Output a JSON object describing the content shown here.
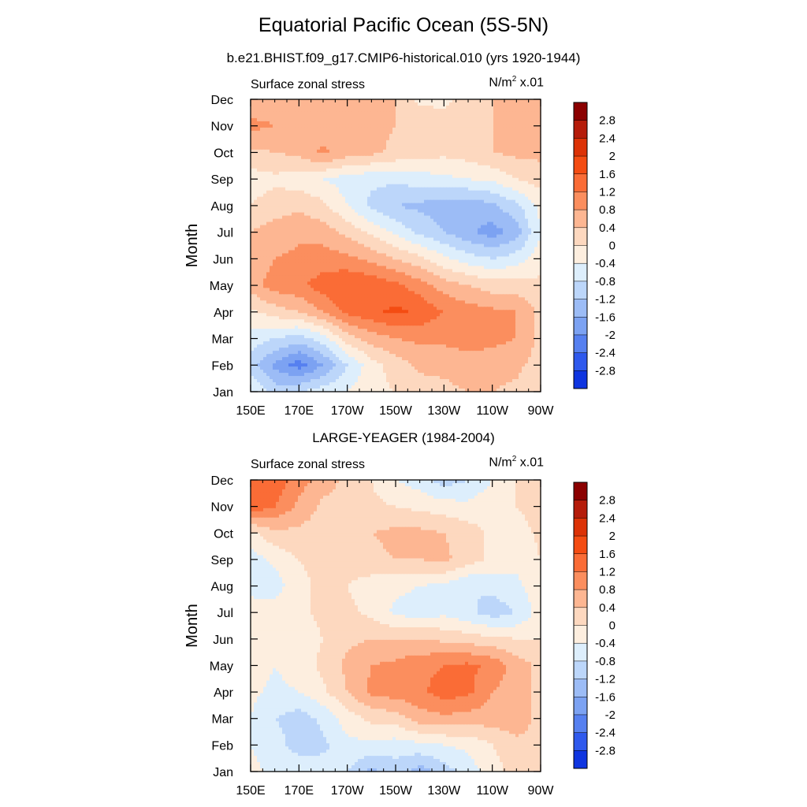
{
  "title": "Equatorial Pacific Ocean (5S-5N)",
  "chart_data": [
    {
      "type": "heatmap",
      "subtitle": "b.e21.BHIST.f09_g17.CMIP6-historical.010 (yrs 1920-1944)",
      "variable_label": "Surface zonal stress",
      "units": {
        "base": "N/m",
        "exp": "2",
        "scale": " x.01"
      },
      "xlabel": "",
      "ylabel": "Month",
      "x_ticks": [
        "150E",
        "170E",
        "170W",
        "150W",
        "130W",
        "110W",
        "90W"
      ],
      "y_ticks": [
        "Jan",
        "Feb",
        "Mar",
        "Apr",
        "May",
        "Jun",
        "Jul",
        "Aug",
        "Sep",
        "Oct",
        "Nov",
        "Dec"
      ],
      "x_range_lon": [
        150,
        270
      ],
      "y_range_month_index": [
        0,
        11
      ],
      "colorbar": {
        "levels": [
          "2.8",
          "2.4",
          "2",
          "1.6",
          "1.2",
          "0.8",
          "0.4",
          "0",
          "-0.4",
          "-0.8",
          "-1.2",
          "-1.6",
          "-2",
          "-2.4",
          "-2.8"
        ],
        "colors": [
          "#8b0000",
          "#b51c0a",
          "#dc3206",
          "#f44c12",
          "#fa6c36",
          "#fb8e5e",
          "#fdb692",
          "#fdd8bf",
          "#fdeedf",
          "#ddeefc",
          "#bcd6fa",
          "#9cbcf6",
          "#7ca2f2",
          "#5680f0",
          "#2f59ed",
          "#0f35e0",
          "#0820b4",
          "#000080"
        ]
      },
      "field": {
        "lons": [
          150,
          160,
          170,
          180,
          190,
          200,
          210,
          220,
          230,
          240,
          250,
          260,
          270
        ],
        "rows": [
          [
            -0.4,
            -1.0,
            -0.8,
            -0.6,
            -0.4,
            -0.1,
            0.0,
            0.2,
            0.3,
            0.4,
            0.4,
            0.3,
            0.1
          ],
          [
            -1.0,
            -1.7,
            -2.2,
            -1.6,
            -0.8,
            -0.2,
            0.2,
            0.5,
            0.5,
            0.6,
            0.6,
            0.5,
            0.2
          ],
          [
            -0.6,
            -0.8,
            -1.0,
            -0.6,
            0.2,
            0.6,
            0.8,
            0.9,
            0.9,
            1.0,
            0.9,
            0.8,
            0.3
          ],
          [
            -0.1,
            0.2,
            0.4,
            0.8,
            1.3,
            1.5,
            1.7,
            1.5,
            1.2,
            1.0,
            0.9,
            0.8,
            0.3
          ],
          [
            0.6,
            1.0,
            1.1,
            1.4,
            1.6,
            1.5,
            1.3,
            1.0,
            0.6,
            0.4,
            0.2,
            0.2,
            0.1
          ],
          [
            0.5,
            0.8,
            0.9,
            1.0,
            0.9,
            0.7,
            0.4,
            0.1,
            -0.3,
            -0.6,
            -0.8,
            -0.6,
            -0.2
          ],
          [
            0.4,
            0.6,
            0.7,
            0.6,
            0.3,
            -0.1,
            -0.5,
            -0.9,
            -1.2,
            -1.5,
            -1.8,
            -1.4,
            -0.4
          ],
          [
            0.0,
            0.2,
            0.3,
            0.1,
            -0.4,
            -0.9,
            -1.2,
            -1.3,
            -1.4,
            -1.5,
            -1.3,
            -0.9,
            -0.3
          ],
          [
            -0.2,
            -0.1,
            -0.2,
            -0.4,
            -0.6,
            -0.7,
            -0.7,
            -0.6,
            -0.5,
            -0.4,
            -0.3,
            0.0,
            0.2
          ],
          [
            0.3,
            0.4,
            0.5,
            0.9,
            0.6,
            0.5,
            0.3,
            0.2,
            0.1,
            0.2,
            0.4,
            0.5,
            0.5
          ],
          [
            0.9,
            0.8,
            0.7,
            0.6,
            0.5,
            0.5,
            0.4,
            0.3,
            0.2,
            0.3,
            0.4,
            0.5,
            0.5
          ],
          [
            0.5,
            0.7,
            0.7,
            0.6,
            0.5,
            0.5,
            0.4,
            -0.1,
            -0.1,
            0.2,
            0.4,
            0.4,
            0.4
          ]
        ]
      }
    },
    {
      "type": "heatmap",
      "subtitle": "LARGE-YEAGER (1984-2004)",
      "variable_label": "Surface zonal stress",
      "units": {
        "base": "N/m",
        "exp": "2",
        "scale": " x.01"
      },
      "xlabel": "",
      "ylabel": "Month",
      "x_ticks": [
        "150E",
        "170E",
        "170W",
        "150W",
        "130W",
        "110W",
        "90W"
      ],
      "y_ticks": [
        "Jan",
        "Feb",
        "Mar",
        "Apr",
        "May",
        "Jun",
        "Jul",
        "Aug",
        "Sep",
        "Oct",
        "Nov",
        "Dec"
      ],
      "x_range_lon": [
        150,
        270
      ],
      "y_range_month_index": [
        0,
        11
      ],
      "colorbar": {
        "levels": [
          "2.8",
          "2.4",
          "2",
          "1.6",
          "1.2",
          "0.8",
          "0.4",
          "0",
          "-0.4",
          "-0.8",
          "-1.2",
          "-1.6",
          "-2",
          "-2.4",
          "-2.8"
        ],
        "colors": [
          "#8b0000",
          "#b51c0a",
          "#dc3206",
          "#f44c12",
          "#fa6c36",
          "#fb8e5e",
          "#fdb692",
          "#fdd8bf",
          "#fdeedf",
          "#ddeefc",
          "#bcd6fa",
          "#9cbcf6",
          "#7ca2f2",
          "#5680f0",
          "#2f59ed",
          "#0f35e0",
          "#0820b4",
          "#000080"
        ]
      },
      "field": {
        "lons": [
          150,
          160,
          170,
          180,
          190,
          200,
          210,
          220,
          230,
          240,
          250,
          260,
          270
        ],
        "rows": [
          [
            -0.3,
            -0.5,
            -0.5,
            -0.6,
            -0.8,
            -1.3,
            -1.0,
            -1.4,
            -1.0,
            -0.6,
            -0.2,
            0.2,
            0.3
          ],
          [
            -0.4,
            -0.6,
            -1.0,
            -0.9,
            -0.5,
            -0.5,
            -0.6,
            -0.5,
            -0.4,
            -0.3,
            0.0,
            0.3,
            0.3
          ],
          [
            -0.4,
            -0.8,
            -1.0,
            -0.7,
            -0.2,
            0.1,
            0.2,
            0.6,
            0.7,
            0.6,
            0.6,
            0.6,
            0.3
          ],
          [
            -0.3,
            -0.5,
            -0.4,
            -0.1,
            0.4,
            0.9,
            1.0,
            1.1,
            1.4,
            1.3,
            0.8,
            0.6,
            0.3
          ],
          [
            -0.2,
            -0.4,
            -0.2,
            0.1,
            0.5,
            0.8,
            0.9,
            1.1,
            1.2,
            1.3,
            1.1,
            0.6,
            0.3
          ],
          [
            -0.1,
            -0.3,
            -0.2,
            0.0,
            0.3,
            0.4,
            0.4,
            0.4,
            0.3,
            0.2,
            0.1,
            0.0,
            0.0
          ],
          [
            0.0,
            -0.2,
            -0.1,
            0.1,
            0.1,
            -0.1,
            -0.5,
            -0.6,
            -0.5,
            -0.7,
            -1.0,
            -0.8,
            -0.2
          ],
          [
            -0.7,
            -0.6,
            -0.1,
            0.1,
            0.0,
            -0.2,
            -0.3,
            -0.4,
            -0.5,
            -0.8,
            -0.7,
            -0.5,
            -0.1
          ],
          [
            -0.6,
            -0.3,
            0.0,
            0.1,
            0.2,
            0.3,
            0.4,
            0.4,
            0.5,
            0.2,
            -0.1,
            -0.3,
            0.0
          ],
          [
            -0.1,
            0.3,
            0.3,
            0.2,
            0.2,
            0.4,
            0.5,
            0.5,
            0.4,
            0.2,
            -0.1,
            -0.2,
            0.1
          ],
          [
            1.5,
            1.2,
            0.7,
            0.3,
            0.2,
            0.1,
            0.0,
            -0.1,
            -0.2,
            -0.3,
            -0.1,
            0.0,
            0.2
          ],
          [
            1.3,
            1.5,
            1.0,
            0.6,
            0.3,
            0.0,
            -0.4,
            -0.6,
            -1.0,
            -0.8,
            -0.4,
            0.0,
            0.3
          ]
        ]
      }
    }
  ]
}
